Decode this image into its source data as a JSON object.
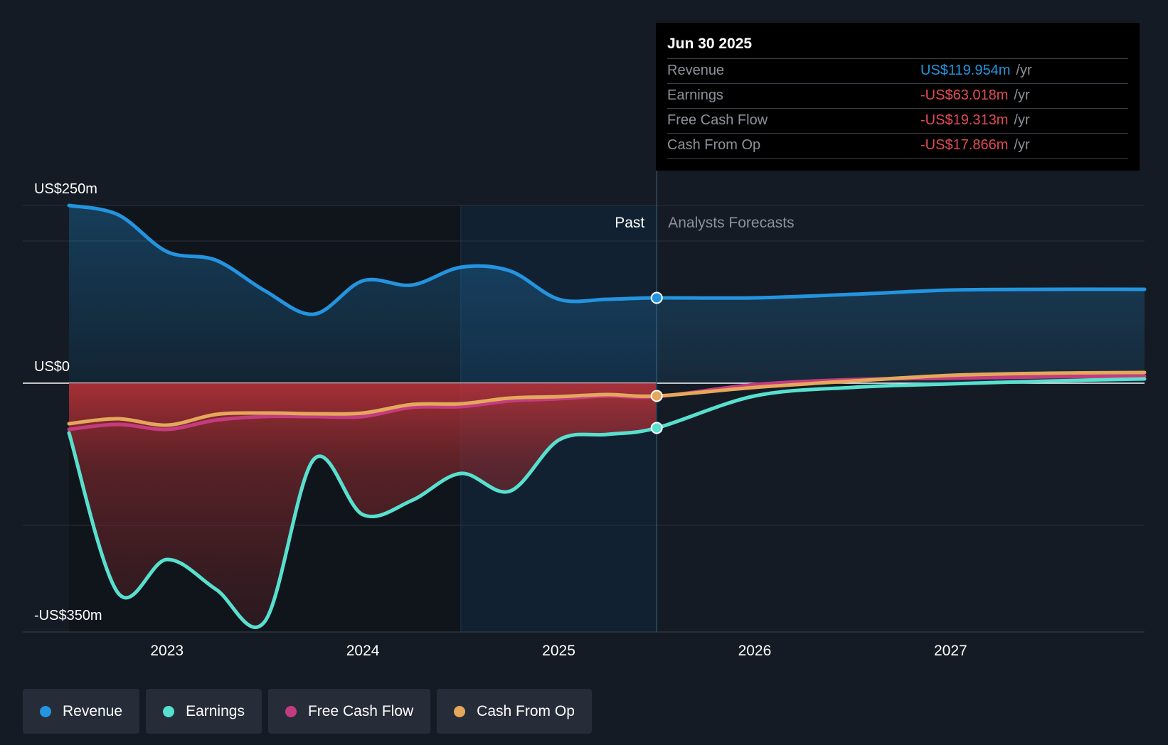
{
  "chart_data": {
    "type": "area",
    "y_unit": "US$ millions",
    "ylim": [
      -350,
      250
    ],
    "y_labels": {
      "top": "US$250m",
      "zero": "US$0",
      "bottom": "-US$350m"
    },
    "x_ticks": [
      2023,
      2024,
      2025,
      2026,
      2027
    ],
    "x_range": [
      2022.5,
      2027.99
    ],
    "divider_x": 2025.5,
    "past_label": "Past",
    "forecast_label": "Analysts Forecasts",
    "series": [
      {
        "name": "Revenue",
        "color": "#2394df",
        "points": [
          [
            2022.5,
            250
          ],
          [
            2022.75,
            237
          ],
          [
            2023.0,
            185
          ],
          [
            2023.25,
            173
          ],
          [
            2023.5,
            130
          ],
          [
            2023.75,
            97
          ],
          [
            2024.0,
            144
          ],
          [
            2024.25,
            138
          ],
          [
            2024.5,
            163
          ],
          [
            2024.75,
            158
          ],
          [
            2025.0,
            118
          ],
          [
            2025.25,
            118
          ],
          [
            2025.5,
            120
          ],
          [
            2026.0,
            120
          ],
          [
            2026.5,
            125
          ],
          [
            2027.0,
            131
          ],
          [
            2027.5,
            132
          ],
          [
            2027.99,
            132
          ]
        ]
      },
      {
        "name": "Earnings",
        "color": "#58e0cf",
        "points": [
          [
            2022.5,
            -70
          ],
          [
            2022.75,
            -295
          ],
          [
            2023.0,
            -248
          ],
          [
            2023.25,
            -290
          ],
          [
            2023.5,
            -335
          ],
          [
            2023.75,
            -107
          ],
          [
            2024.0,
            -185
          ],
          [
            2024.25,
            -165
          ],
          [
            2024.5,
            -127
          ],
          [
            2024.75,
            -152
          ],
          [
            2025.0,
            -80
          ],
          [
            2025.25,
            -72
          ],
          [
            2025.5,
            -63
          ],
          [
            2026.0,
            -18
          ],
          [
            2026.5,
            -6
          ],
          [
            2027.0,
            -1
          ],
          [
            2027.5,
            3
          ],
          [
            2027.99,
            6
          ]
        ]
      },
      {
        "name": "Free Cash Flow",
        "color": "#c43c7f",
        "points": [
          [
            2022.5,
            -65
          ],
          [
            2022.75,
            -58
          ],
          [
            2023.0,
            -65
          ],
          [
            2023.25,
            -52
          ],
          [
            2023.5,
            -47
          ],
          [
            2023.75,
            -47
          ],
          [
            2024.0,
            -47
          ],
          [
            2024.25,
            -34
          ],
          [
            2024.5,
            -33
          ],
          [
            2024.75,
            -25
          ],
          [
            2025.0,
            -22
          ],
          [
            2025.25,
            -18
          ],
          [
            2025.5,
            -19
          ],
          [
            2026.0,
            -2
          ],
          [
            2026.5,
            5
          ],
          [
            2027.0,
            7
          ],
          [
            2027.5,
            9
          ],
          [
            2027.99,
            10
          ]
        ]
      },
      {
        "name": "Cash From Op",
        "color": "#e5a85b",
        "points": [
          [
            2022.5,
            -57
          ],
          [
            2022.75,
            -50
          ],
          [
            2023.0,
            -59
          ],
          [
            2023.25,
            -44
          ],
          [
            2023.5,
            -42
          ],
          [
            2023.75,
            -43
          ],
          [
            2024.0,
            -42
          ],
          [
            2024.25,
            -30
          ],
          [
            2024.5,
            -29
          ],
          [
            2024.75,
            -21
          ],
          [
            2025.0,
            -19
          ],
          [
            2025.25,
            -16
          ],
          [
            2025.5,
            -18
          ],
          [
            2026.0,
            -6
          ],
          [
            2026.5,
            3
          ],
          [
            2027.0,
            11
          ],
          [
            2027.5,
            14
          ],
          [
            2027.99,
            15
          ]
        ]
      }
    ]
  },
  "tooltip": {
    "date": "Jun 30 2025",
    "unit": "/yr",
    "rows": [
      {
        "label": "Revenue",
        "value": "US$119.954m",
        "color": "#2394df"
      },
      {
        "label": "Earnings",
        "value": "-US$63.018m",
        "color": "#e24b55"
      },
      {
        "label": "Free Cash Flow",
        "value": "-US$19.313m",
        "color": "#e24b55"
      },
      {
        "label": "Cash From Op",
        "value": "-US$17.866m",
        "color": "#e24b55"
      }
    ]
  },
  "legend": [
    {
      "label": "Revenue",
      "color": "#2394df"
    },
    {
      "label": "Earnings",
      "color": "#58e0cf"
    },
    {
      "label": "Free Cash Flow",
      "color": "#c43c7f"
    },
    {
      "label": "Cash From Op",
      "color": "#e5a85b"
    }
  ]
}
